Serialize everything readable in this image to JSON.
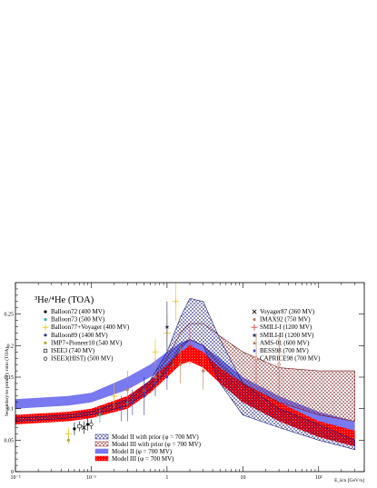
{
  "chart_data": {
    "type": "scatter",
    "title": "³He/⁴He (TOA)",
    "xlabel": "E_k/n [GeV/n]",
    "ylabel": "Secondary-to-primary ratio (TOA)",
    "xscale": "log",
    "xlim": [
      0.01,
      400
    ],
    "ylim": [
      0,
      0.3
    ],
    "yticks": [
      "0",
      "0.05",
      "0.1",
      "0.15",
      "0.2",
      "0.25"
    ],
    "xticks": [
      "10⁻²",
      "10⁻¹",
      "1",
      "10",
      "10²"
    ],
    "experiments": [
      {
        "name": "Balloon72 (400 MV)",
        "marker": "circle",
        "color": "#000000",
        "points": [
          [
            0.06,
            0.068,
            0.01
          ],
          [
            0.09,
            0.075,
            0.01
          ]
        ]
      },
      {
        "name": "Balloon73 (500 MV)",
        "marker": "circle",
        "color": "#2eb8a0",
        "points": [
          [
            0.13,
            0.09,
            0.012
          ]
        ]
      },
      {
        "name": "Balloon77+Voyager (400 MV)",
        "marker": "plus",
        "color": "#e8c21a",
        "points": [
          [
            0.05,
            0.06,
            0.01
          ],
          [
            0.2,
            0.12,
            0.02
          ],
          [
            0.7,
            0.19,
            0.02
          ],
          [
            1.0,
            0.22,
            0.03
          ],
          [
            1.3,
            0.27,
            0.03
          ]
        ]
      },
      {
        "name": "Balloon89 (1400 MV)",
        "marker": "circle",
        "color": "#3030a0",
        "points": [
          [
            0.3,
            0.11,
            0.03
          ],
          [
            0.5,
            0.12,
            0.03
          ]
        ]
      },
      {
        "name": "IMP7+Pioneer10 (540 MV)",
        "marker": "circle",
        "color": "#b4a830",
        "points": [
          [
            0.05,
            0.05,
            0.006
          ]
        ]
      },
      {
        "name": "ISEE3 (740 MV)",
        "marker": "square",
        "color": "#000000",
        "points": [
          [
            0.07,
            0.072,
            0.008
          ]
        ]
      },
      {
        "name": "ISEE3(HIST) (500 MV)",
        "marker": "circle-open",
        "color": "#000000",
        "points": [
          [
            0.1,
            0.075,
            0.008
          ]
        ]
      },
      {
        "name": "Voyager87 (360 MV)",
        "marker": "cross",
        "color": "#000000",
        "points": [
          [
            0.08,
            0.07,
            0.01
          ]
        ]
      },
      {
        "name": "IMAX92 (750 MV)",
        "marker": "circle",
        "color": "#c08060",
        "points": [
          [
            0.3,
            0.13,
            0.03
          ],
          [
            0.7,
            0.15,
            0.03
          ],
          [
            1.5,
            0.17,
            0.03
          ],
          [
            3.0,
            0.16,
            0.03
          ]
        ]
      },
      {
        "name": "SMILI-I (1200 MV)",
        "marker": "plus",
        "color": "#d04040",
        "points": [
          [
            2.0,
            0.2,
            0.03
          ]
        ]
      },
      {
        "name": "SMILI-II (1200 MV)",
        "marker": "star",
        "color": "#303060",
        "points": [
          [
            1.0,
            0.23,
            0.04
          ]
        ]
      },
      {
        "name": "AMS-01 (600 MV)",
        "marker": "triangle",
        "color": "#a07050",
        "points": [
          [
            0.3,
            0.11,
            0.01
          ],
          [
            0.5,
            0.13,
            0.01
          ],
          [
            0.8,
            0.155,
            0.01
          ],
          [
            1.2,
            0.17,
            0.01
          ]
        ]
      },
      {
        "name": "BESS98 (700 MV)",
        "marker": "diamond",
        "color": "#4040c0",
        "points": [
          [
            0.25,
            0.1,
            0.02
          ],
          [
            0.35,
            0.11,
            0.02
          ],
          [
            0.5,
            0.125,
            0.02
          ],
          [
            0.7,
            0.14,
            0.02
          ],
          [
            1.0,
            0.15,
            0.02
          ]
        ]
      },
      {
        "name": "CAPRICE98 (700 MV)",
        "marker": "diamond-open",
        "color": "#c06040",
        "points": [
          [
            15,
            0.18,
            0.04
          ],
          [
            30,
            0.17,
            0.05
          ]
        ]
      }
    ],
    "models": [
      {
        "name": "Model II with prior (φ = 700 MV)",
        "style": "blue-crosshatch",
        "color": "#1a1a80",
        "x": [
          0.01,
          0.05,
          0.1,
          0.3,
          0.6,
          1.0,
          1.5,
          2.0,
          3.0,
          5.0,
          10.0,
          30.0,
          100.0,
          300.0
        ],
        "lo": [
          0.08,
          0.085,
          0.09,
          0.105,
          0.13,
          0.16,
          0.195,
          0.21,
          0.2,
          0.14,
          0.09,
          0.07,
          0.05,
          0.035
        ],
        "hi": [
          0.085,
          0.09,
          0.095,
          0.115,
          0.145,
          0.19,
          0.245,
          0.275,
          0.27,
          0.21,
          0.14,
          0.1,
          0.075,
          0.05
        ]
      },
      {
        "name": "Model III with prior (φ = 700 MV)",
        "style": "red-crosshatch",
        "color": "#801a1a",
        "x": [
          0.01,
          0.05,
          0.1,
          0.3,
          0.6,
          1.0,
          1.5,
          2.0,
          3.0,
          5.0,
          10.0,
          30.0,
          100.0,
          300.0
        ],
        "lo": [
          0.08,
          0.085,
          0.09,
          0.105,
          0.13,
          0.165,
          0.2,
          0.21,
          0.2,
          0.17,
          0.14,
          0.11,
          0.09,
          0.08
        ],
        "hi": [
          0.085,
          0.09,
          0.095,
          0.112,
          0.14,
          0.18,
          0.22,
          0.235,
          0.235,
          0.215,
          0.19,
          0.165,
          0.16,
          0.16
        ]
      },
      {
        "name": "Model II (φ = 700 MV)",
        "style": "blue-solid",
        "color": "#6a6af0",
        "x": [
          0.01,
          0.05,
          0.1,
          0.3,
          0.6,
          1.0,
          1.5,
          2.0,
          3.0,
          5.0,
          10.0,
          30.0,
          100.0,
          300.0
        ],
        "lo": [
          0.1,
          0.105,
          0.11,
          0.13,
          0.15,
          0.165,
          0.175,
          0.18,
          0.17,
          0.15,
          0.12,
          0.09,
          0.065,
          0.05
        ],
        "hi": [
          0.115,
          0.12,
          0.125,
          0.15,
          0.17,
          0.19,
          0.205,
          0.21,
          0.2,
          0.18,
          0.15,
          0.12,
          0.095,
          0.08
        ]
      },
      {
        "name": "Model III (φ = 700 MV)",
        "style": "red-solid",
        "color": "#ff0000",
        "x": [
          0.01,
          0.05,
          0.1,
          0.3,
          0.6,
          1.0,
          1.5,
          2.0,
          3.0,
          5.0,
          10.0,
          30.0,
          100.0,
          300.0
        ],
        "lo": [
          0.075,
          0.08,
          0.085,
          0.1,
          0.125,
          0.15,
          0.17,
          0.175,
          0.165,
          0.14,
          0.11,
          0.08,
          0.055,
          0.04
        ],
        "hi": [
          0.09,
          0.095,
          0.1,
          0.12,
          0.145,
          0.17,
          0.19,
          0.2,
          0.19,
          0.165,
          0.14,
          0.11,
          0.08,
          0.065
        ]
      }
    ],
    "legend_left_placement": "top-left",
    "legend_right_placement": "top-right",
    "legend_models_placement": "bottom-center"
  }
}
